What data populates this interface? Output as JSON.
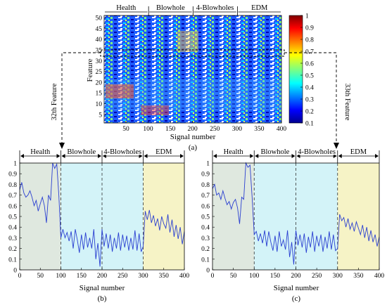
{
  "figure": {
    "panel_a": {
      "label": "(a)",
      "ylabel": "Feature",
      "xlabel": "Signal number",
      "x_ticks": [
        "50",
        "100",
        "150",
        "200",
        "250",
        "300",
        "350",
        "400"
      ],
      "y_ticks": [
        "5",
        "10",
        "15",
        "20",
        "25",
        "30",
        "35",
        "40",
        "45",
        "50"
      ],
      "xlim": [
        1,
        400
      ],
      "ylim": [
        1,
        51
      ],
      "group_labels": [
        "Health",
        "Blowhole",
        "4-Blowholes",
        "EDM"
      ],
      "highlighted_features": [
        32,
        33
      ],
      "colorbar_ticks": [
        "0.1",
        "0.2",
        "0.3",
        "0.4",
        "0.5",
        "0.6",
        "0.7",
        "0.8",
        "0.9",
        "1"
      ],
      "colormap": "jet",
      "left_arrow_label": "32th Feature",
      "right_arrow_label": "33th Feature"
    },
    "panel_b": {
      "label": "(b)",
      "xlabel": "Signal number",
      "x_ticks": [
        "0",
        "50",
        "100",
        "150",
        "200",
        "250",
        "300",
        "350",
        "400"
      ],
      "y_ticks": [
        "0",
        "0.1",
        "0.2",
        "0.3",
        "0.4",
        "0.5",
        "0.6",
        "0.7",
        "0.8",
        "0.9",
        "1"
      ],
      "group_labels": [
        "Health",
        "Blowhole",
        "4-Blowholes",
        "EDM"
      ]
    },
    "panel_c": {
      "label": "(c)",
      "xlabel": "Signal number",
      "x_ticks": [
        "0",
        "50",
        "100",
        "150",
        "200",
        "250",
        "300",
        "350",
        "400"
      ],
      "y_ticks": [
        "0",
        "0.1",
        "0.2",
        "0.3",
        "0.4",
        "0.5",
        "0.6",
        "0.7",
        "0.8",
        "0.9",
        "1"
      ],
      "group_labels": [
        "Health",
        "Blowhole",
        "4-Blowholes",
        "EDM"
      ]
    }
  },
  "colors": {
    "line": "#2a3fd1",
    "health_bg": "#dfe8df",
    "blowhole_bg": "#d3f3f8",
    "edm_bg": "#f6f3c6"
  },
  "chart_data": [
    {
      "type": "heatmap",
      "xlabel": "Signal number",
      "ylabel": "Feature",
      "xlim": [
        1,
        400
      ],
      "ylim": [
        1,
        51
      ],
      "rows": 51,
      "cols": 400,
      "value_range": [
        0.1,
        1
      ],
      "colormap": "jet",
      "groups": [
        {
          "name": "Health",
          "range": [
            1,
            100
          ]
        },
        {
          "name": "Blowhole",
          "range": [
            101,
            200
          ]
        },
        {
          "name": "4-Blowholes",
          "range": [
            201,
            300
          ]
        },
        {
          "name": "EDM",
          "range": [
            301,
            400
          ]
        }
      ],
      "highlighted_rows": [
        32,
        33
      ]
    },
    {
      "type": "line",
      "title": "",
      "xlabel": "Signal number",
      "ylabel": "",
      "xlim": [
        0,
        400
      ],
      "ylim": [
        0,
        1
      ],
      "x": [
        0,
        5,
        10,
        15,
        20,
        25,
        30,
        35,
        40,
        45,
        50,
        55,
        60,
        65,
        70,
        75,
        80,
        85,
        90,
        95,
        100,
        105,
        110,
        115,
        120,
        125,
        130,
        135,
        140,
        145,
        150,
        155,
        160,
        165,
        170,
        175,
        180,
        185,
        190,
        195,
        200,
        205,
        210,
        215,
        220,
        225,
        230,
        235,
        240,
        245,
        250,
        255,
        260,
        265,
        270,
        275,
        280,
        285,
        290,
        295,
        300,
        305,
        310,
        315,
        320,
        325,
        330,
        335,
        340,
        345,
        350,
        355,
        360,
        365,
        370,
        375,
        380,
        385,
        390,
        395,
        400
      ],
      "series": [
        {
          "values": [
            0.75,
            0.82,
            0.72,
            0.68,
            0.7,
            0.74,
            0.68,
            0.6,
            0.65,
            0.55,
            0.62,
            0.68,
            0.6,
            0.44,
            0.7,
            0.65,
            1.0,
            0.95,
            0.99,
            0.7,
            0.3,
            0.38,
            0.3,
            0.35,
            0.27,
            0.36,
            0.2,
            0.38,
            0.28,
            0.16,
            0.33,
            0.19,
            0.35,
            0.21,
            0.3,
            0.2,
            0.38,
            0.1,
            0.25,
            0.03,
            0.38,
            0.22,
            0.34,
            0.2,
            0.33,
            0.17,
            0.3,
            0.2,
            0.35,
            0.18,
            0.33,
            0.21,
            0.32,
            0.18,
            0.3,
            0.19,
            0.37,
            0.18,
            0.34,
            0.17,
            0.22,
            0.55,
            0.47,
            0.56,
            0.44,
            0.51,
            0.41,
            0.48,
            0.37,
            0.5,
            0.43,
            0.39,
            0.52,
            0.35,
            0.47,
            0.31,
            0.42,
            0.29,
            0.4,
            0.24,
            0.36
          ]
        }
      ],
      "background_regions": [
        {
          "label": "Health",
          "range": [
            0,
            100
          ]
        },
        {
          "label": "Blowhole",
          "range": [
            100,
            200
          ]
        },
        {
          "label": "4-Blowholes",
          "range": [
            200,
            300
          ]
        },
        {
          "label": "EDM",
          "range": [
            300,
            400
          ]
        }
      ]
    },
    {
      "type": "line",
      "title": "",
      "xlabel": "Signal number",
      "ylabel": "",
      "xlim": [
        0,
        400
      ],
      "ylim": [
        0,
        1
      ],
      "x": [
        0,
        5,
        10,
        15,
        20,
        25,
        30,
        35,
        40,
        45,
        50,
        55,
        60,
        65,
        70,
        75,
        80,
        85,
        90,
        95,
        100,
        105,
        110,
        115,
        120,
        125,
        130,
        135,
        140,
        145,
        150,
        155,
        160,
        165,
        170,
        175,
        180,
        185,
        190,
        195,
        200,
        205,
        210,
        215,
        220,
        225,
        230,
        235,
        240,
        245,
        250,
        255,
        260,
        265,
        270,
        275,
        280,
        285,
        290,
        295,
        300,
        305,
        310,
        315,
        320,
        325,
        330,
        335,
        340,
        345,
        350,
        355,
        360,
        365,
        370,
        375,
        380,
        385,
        390,
        395,
        400
      ],
      "series": [
        {
          "values": [
            0.76,
            0.8,
            0.7,
            0.72,
            0.66,
            0.74,
            0.67,
            0.61,
            0.64,
            0.57,
            0.63,
            0.66,
            0.58,
            0.43,
            0.68,
            0.66,
            1.0,
            0.96,
            0.98,
            0.68,
            0.33,
            0.36,
            0.27,
            0.34,
            0.25,
            0.37,
            0.22,
            0.36,
            0.26,
            0.18,
            0.32,
            0.17,
            0.36,
            0.22,
            0.28,
            0.19,
            0.37,
            0.12,
            0.26,
            0.05,
            0.37,
            0.23,
            0.33,
            0.21,
            0.34,
            0.16,
            0.31,
            0.21,
            0.36,
            0.17,
            0.32,
            0.22,
            0.33,
            0.17,
            0.31,
            0.2,
            0.36,
            0.19,
            0.33,
            0.18,
            0.2,
            0.52,
            0.46,
            0.49,
            0.4,
            0.48,
            0.38,
            0.44,
            0.36,
            0.45,
            0.39,
            0.33,
            0.42,
            0.3,
            0.4,
            0.27,
            0.37,
            0.26,
            0.33,
            0.22,
            0.31
          ]
        }
      ],
      "background_regions": [
        {
          "label": "Health",
          "range": [
            0,
            100
          ]
        },
        {
          "label": "Blowhole",
          "range": [
            100,
            200
          ]
        },
        {
          "label": "4-Blowholes",
          "range": [
            200,
            300
          ]
        },
        {
          "label": "EDM",
          "range": [
            300,
            400
          ]
        }
      ]
    }
  ]
}
